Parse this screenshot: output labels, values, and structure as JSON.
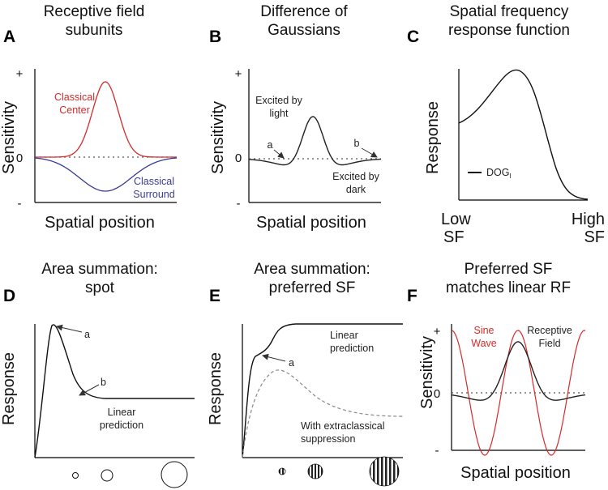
{
  "panels": {
    "A": {
      "label": "A",
      "title": [
        "Receptive field",
        "subunits"
      ],
      "ylabel": "Sensitivity",
      "xlabel": "Spatial position",
      "ticks": {
        "plus": "+",
        "zero": "0",
        "minus": "-"
      },
      "center_label": [
        "Classical",
        "Center"
      ],
      "surround_label": [
        "Classical",
        "Surround"
      ],
      "center_color": "#d42a2a",
      "surround_color": "#3a3a96"
    },
    "B": {
      "label": "B",
      "title": [
        "Difference of",
        "Gaussians"
      ],
      "ylabel": "Sensitivity",
      "xlabel": "Spatial position",
      "ticks": {
        "plus": "+",
        "zero": "0",
        "minus": "-"
      },
      "light_label": [
        "Excited by",
        "light"
      ],
      "dark_label": [
        "Excited by",
        "dark"
      ],
      "arrow_a": "a",
      "arrow_b": "b"
    },
    "C": {
      "label": "C",
      "title": [
        "Spatial frequency",
        "response function"
      ],
      "ylabel": "Response",
      "legend_label": "DOG",
      "legend_sub": "l",
      "x_low": [
        "Low",
        "SF"
      ],
      "x_high": [
        "High",
        "SF"
      ]
    },
    "D": {
      "label": "D",
      "title": [
        "Area summation:",
        "spot"
      ],
      "ylabel": "Response",
      "arrow_a": "a",
      "arrow_b": "b",
      "linear_label": [
        "Linear",
        "prediction"
      ]
    },
    "E": {
      "label": "E",
      "title": [
        "Area summation:",
        "preferred SF"
      ],
      "ylabel": "Response",
      "arrow_a": "a",
      "linear_label": [
        "Linear",
        "prediction"
      ],
      "supp_label": [
        "With extraclassical",
        "suppression"
      ]
    },
    "F": {
      "label": "F",
      "title": [
        "Preferred SF",
        "matches linear RF"
      ],
      "ylabel": "Sensitivity",
      "xlabel": "Spatial position",
      "ticks": {
        "plus": "+",
        "zero": "0",
        "minus": "-"
      },
      "sine_label": [
        "Sine",
        "Wave"
      ],
      "rf_label": [
        "Receptive",
        "Field"
      ],
      "sine_color": "#d42a2a"
    }
  }
}
